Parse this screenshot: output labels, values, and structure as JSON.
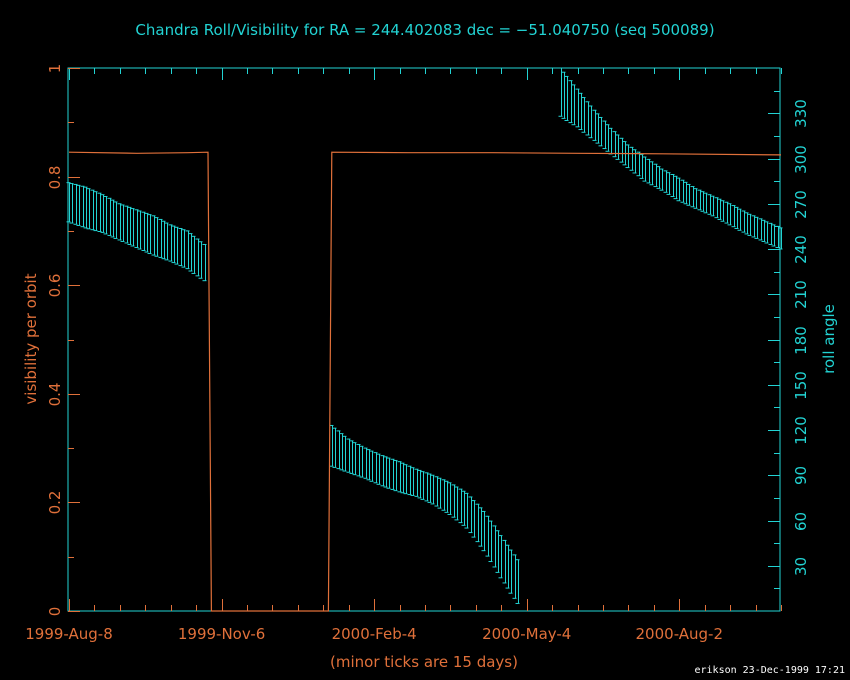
{
  "chart_data": {
    "type": "line",
    "title": "Chandra Roll/Visibility for RA = 244.402083 dec = −51.040750   (seq 500089)",
    "xlabel": "(minor ticks are 15 days)",
    "ylabel_left": "visibility per orbit",
    "ylabel_right": "roll angle",
    "footer": "erikson 23-Dec-1999 17:21",
    "x_tick_labels": [
      "1999-Aug-8",
      "1999-Nov-6",
      "2000-Feb-4",
      "2000-May-4",
      "2000-Aug-2"
    ],
    "x_tick_days": [
      0,
      90,
      180,
      270,
      360
    ],
    "x_range_days": [
      0,
      420
    ],
    "x_minor_tick_spacing_days": 15,
    "y_left_range": [
      0,
      1
    ],
    "y_left_ticks": [
      0,
      0.2,
      0.4,
      0.6,
      0.8,
      1
    ],
    "y_left_tick_labels": [
      "0",
      "0.2",
      "0.4",
      "0.6",
      "0.8",
      "1"
    ],
    "y_right_range": [
      0,
      360
    ],
    "y_right_ticks": [
      30,
      60,
      90,
      120,
      150,
      180,
      210,
      240,
      270,
      300,
      330
    ],
    "y_right_tick_labels": [
      "30",
      "60",
      "90",
      "120",
      "150",
      "180",
      "210",
      "240",
      "270",
      "300",
      "330"
    ],
    "colors": {
      "axes": "#22d3d3",
      "visibility": "#e0703a",
      "roll": "#22d3d3",
      "footer": "#ffffff"
    },
    "series": [
      {
        "name": "visibility per orbit",
        "axis": "left",
        "points": [
          [
            0,
            0.845
          ],
          [
            40,
            0.843
          ],
          [
            70,
            0.844
          ],
          [
            82,
            0.845
          ],
          [
            84,
            0.0
          ],
          [
            153,
            0.0
          ],
          [
            155,
            0.845
          ],
          [
            200,
            0.844
          ],
          [
            250,
            0.844
          ],
          [
            300,
            0.843
          ],
          [
            350,
            0.842
          ],
          [
            420,
            0.84
          ]
        ]
      },
      {
        "name": "roll angle",
        "axis": "right",
        "style": "error-bars",
        "segments": [
          {
            "points": [
              [
                0,
                284,
                258
              ],
              [
                10,
                281,
                254
              ],
              [
                20,
                276,
                251
              ],
              [
                30,
                270,
                246
              ],
              [
                40,
                266,
                241
              ],
              [
                50,
                262,
                236
              ],
              [
                60,
                256,
                232
              ],
              [
                70,
                252,
                227
              ],
              [
                80,
                243,
                219
              ]
            ]
          },
          {
            "points": [
              [
                155,
                123,
                96
              ],
              [
                165,
                114,
                92
              ],
              [
                175,
                108,
                88
              ],
              [
                185,
                103,
                83
              ],
              [
                195,
                99,
                79
              ],
              [
                205,
                94,
                76
              ],
              [
                215,
                90,
                71
              ],
              [
                225,
                85,
                64
              ],
              [
                235,
                78,
                55
              ],
              [
                245,
                66,
                40
              ],
              [
                255,
                50,
                22
              ],
              [
                265,
                34,
                5
              ]
            ]
          },
          {
            "points": [
              [
                290,
                360,
                328
              ],
              [
                300,
                346,
                321
              ],
              [
                310,
                332,
                312
              ],
              [
                320,
                320,
                303
              ],
              [
                330,
                309,
                294
              ],
              [
                340,
                301,
                285
              ],
              [
                350,
                293,
                279
              ],
              [
                360,
                287,
                272
              ],
              [
                370,
                280,
                267
              ],
              [
                380,
                275,
                262
              ],
              [
                390,
                270,
                256
              ],
              [
                400,
                264,
                250
              ],
              [
                410,
                259,
                245
              ],
              [
                420,
                254,
                240
              ]
            ]
          }
        ]
      }
    ]
  }
}
